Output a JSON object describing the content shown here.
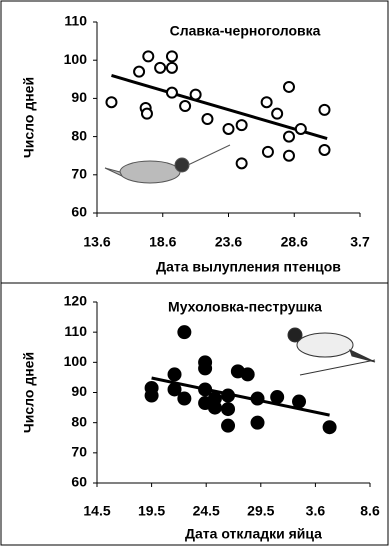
{
  "chart_data": [
    {
      "type": "scatter",
      "title": "Славка-черноголовка",
      "x_label": "Дата вылупления птенцов",
      "y_label": "Число дней",
      "color": "#000000",
      "marker": "hollow",
      "x": [
        1.1,
        3.2,
        3.9,
        4.8,
        3.7,
        3.8,
        5.7,
        5.7,
        5.7,
        6.7,
        7.5,
        8.4,
        10,
        11,
        11,
        12.9,
        13.7,
        14.6,
        14.6,
        14.6,
        15.5,
        13,
        17.3,
        17.3
      ],
      "values": [
        89,
        97,
        101,
        98,
        87.5,
        86,
        101,
        98,
        91.5,
        88,
        91,
        84.6,
        82,
        83,
        73,
        89,
        86,
        93,
        80,
        75,
        82,
        76,
        87,
        76.5
      ],
      "trend": {
        "x": [
          1.1,
          17.5
        ],
        "values": [
          96,
          79.5
        ]
      },
      "xlim": [
        0,
        20
      ],
      "ylim": [
        60,
        110
      ],
      "xticks": [
        {
          "value": 0,
          "label": "13.6"
        },
        {
          "value": 5,
          "label": "18.6"
        },
        {
          "value": 10,
          "label": "23.6"
        },
        {
          "value": 15,
          "label": "28.6"
        },
        {
          "value": 20,
          "label": "3.7"
        }
      ],
      "yticks": [
        60,
        70,
        80,
        90,
        100,
        110
      ]
    },
    {
      "type": "scatter",
      "title": "Мухоловка-пеструшка",
      "x_label": "Дата откладки яйца",
      "y_label": "Число дней",
      "color": "#000000",
      "marker": "filled",
      "x": [
        5,
        5,
        7.1,
        8,
        8,
        7.1,
        9.9,
        9.9,
        9.9,
        9.9,
        10.8,
        10.8,
        12,
        12,
        12,
        12.9,
        13.8,
        14.7,
        14.7,
        16.5,
        18.5,
        21.3
      ],
      "values": [
        91.5,
        89,
        96,
        110,
        88,
        91,
        100,
        98,
        91,
        86.5,
        88,
        85,
        89,
        84.5,
        79,
        97,
        96,
        88,
        80,
        88.5,
        87,
        78.5
      ],
      "trend": {
        "x": [
          5,
          21.3
        ],
        "values": [
          94.8,
          82.5
        ]
      },
      "xlim": [
        0,
        25
      ],
      "ylim": [
        60,
        120
      ],
      "xticks": [
        {
          "value": 0,
          "label": "14.5"
        },
        {
          "value": 5,
          "label": "19.5"
        },
        {
          "value": 10,
          "label": "24.5"
        },
        {
          "value": 15,
          "label": "29.5"
        },
        {
          "value": 20,
          "label": "3.6"
        },
        {
          "value": 25,
          "label": "8.6"
        }
      ],
      "yticks": [
        60,
        70,
        80,
        90,
        100,
        110,
        120
      ]
    }
  ]
}
